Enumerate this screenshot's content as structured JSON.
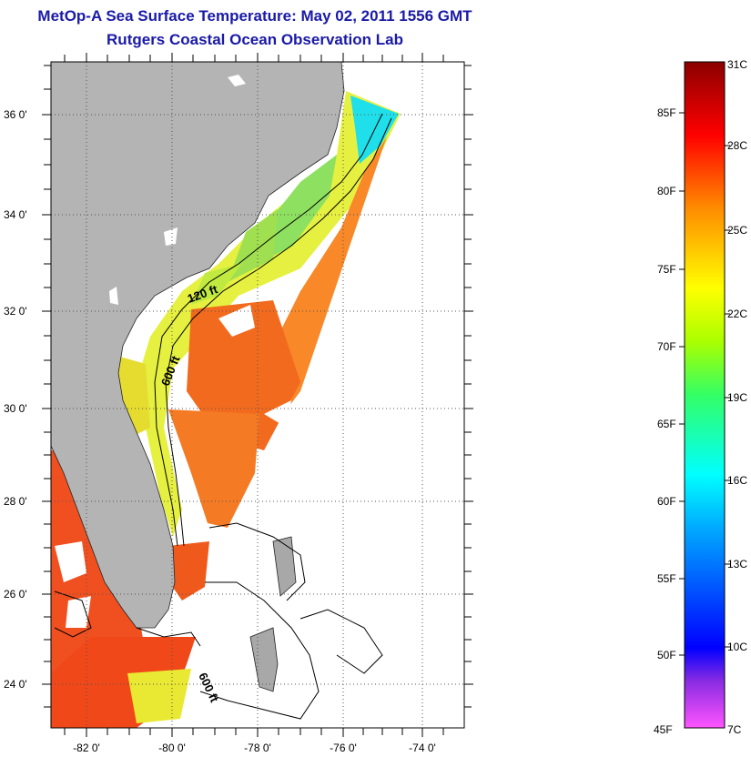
{
  "header": {
    "title": "MetOp-A Sea Surface Temperature:  May 02, 2011 1556 GMT",
    "subtitle": "Rutgers Coastal Ocean Observation Lab"
  },
  "map": {
    "lon_range": [
      -83,
      -73
    ],
    "lat_range": [
      23,
      37
    ],
    "lon_ticks": [
      {
        "value": -82,
        "label": "-82 0'"
      },
      {
        "value": -80,
        "label": "-80 0'"
      },
      {
        "value": -78,
        "label": "-78 0'"
      },
      {
        "value": -76,
        "label": "-76 0'"
      },
      {
        "value": -74,
        "label": "-74 0'"
      }
    ],
    "lat_ticks": [
      {
        "value": 36,
        "label": "36 0'"
      },
      {
        "value": 34,
        "label": "34 0'"
      },
      {
        "value": 32,
        "label": "32 0'"
      },
      {
        "value": 30,
        "label": "30 0'"
      },
      {
        "value": 28,
        "label": "28 0'"
      },
      {
        "value": 26,
        "label": "26 0'"
      },
      {
        "value": 24,
        "label": "24 0'"
      }
    ],
    "grid": "dotted",
    "land_color": "#b4b4b4",
    "contours": [
      {
        "label": "120 ft"
      },
      {
        "label": "600 ft"
      },
      {
        "label": "600 ft"
      }
    ]
  },
  "colorbar": {
    "celsius_labels": [
      "31C",
      "28C",
      "25C",
      "22C",
      "19C",
      "16C",
      "13C",
      "10C",
      "7C"
    ],
    "fahrenheit_labels": [
      "85F",
      "80F",
      "75F",
      "70F",
      "65F",
      "60F",
      "55F",
      "50F",
      "45F"
    ],
    "colors": [
      "#ff55ff",
      "#8a2be2",
      "#0000ff",
      "#00aaff",
      "#00ffff",
      "#00ff66",
      "#aaff00",
      "#ffff00",
      "#ff8c00",
      "#ff0000",
      "#8b0000"
    ]
  }
}
